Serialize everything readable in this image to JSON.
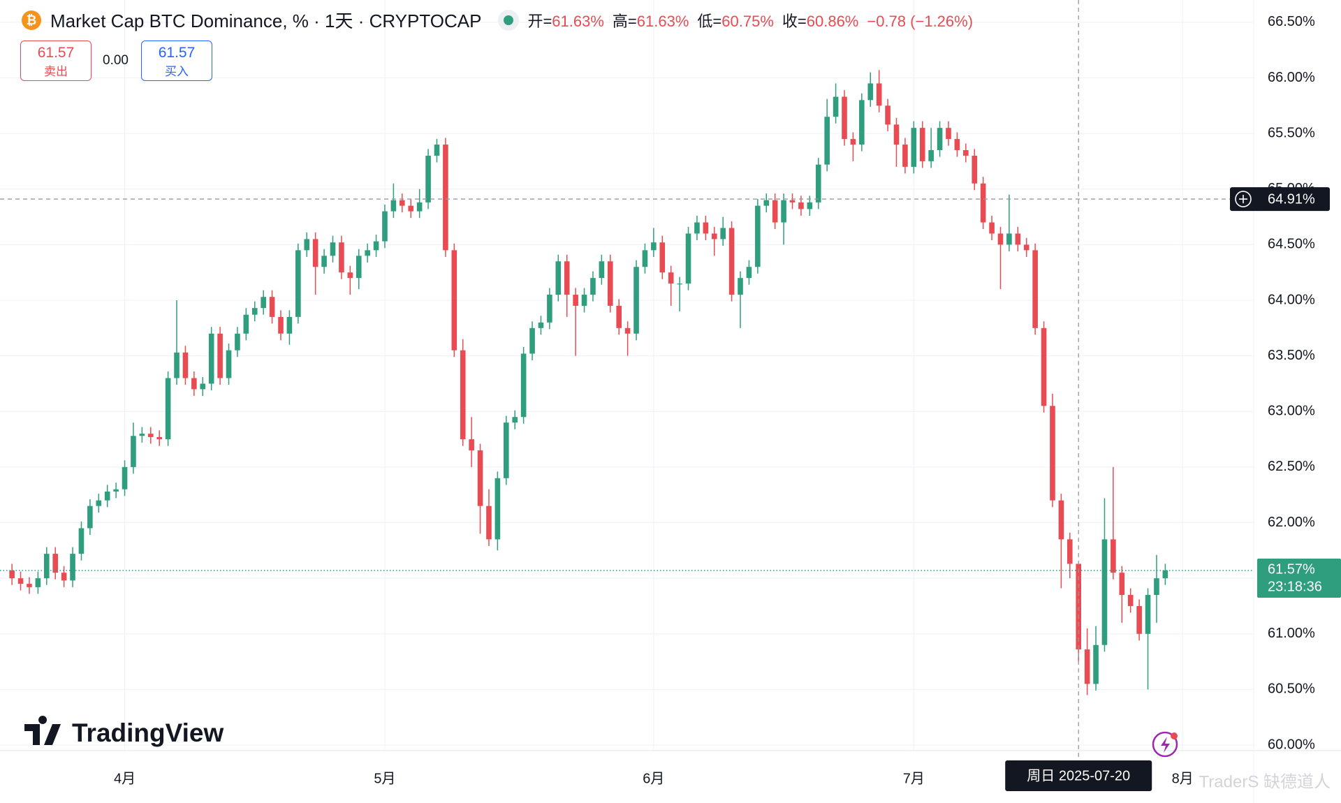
{
  "header": {
    "title": "Market Cap BTC Dominance, % · 1天 · CRYPTOCAP",
    "ohlc": [
      {
        "label": "开=",
        "value": "61.63%"
      },
      {
        "label": "高=",
        "value": "61.63%"
      },
      {
        "label": "低=",
        "value": "60.75%"
      },
      {
        "label": "收=",
        "value": "60.86%"
      }
    ],
    "change": "−0.78 (−1.26%)"
  },
  "trade": {
    "sell_price": "61.57",
    "sell_label": "卖出",
    "spread": "0.00",
    "buy_price": "61.57",
    "buy_label": "买入"
  },
  "chart_data": {
    "type": "candlestick",
    "up_color": "#2e9e7f",
    "down_color": "#e84c52",
    "grid": true,
    "open": [
      61.57,
      61.5,
      61.45,
      61.42,
      61.5,
      61.72,
      61.55,
      61.48,
      61.72,
      61.95,
      62.15,
      62.2,
      62.28,
      62.3,
      62.5,
      62.78,
      62.8,
      62.77,
      62.75,
      63.3,
      63.53,
      63.3,
      63.2,
      63.25,
      63.7,
      63.3,
      63.55,
      63.7,
      63.87,
      63.93,
      64.03,
      63.85,
      63.7,
      63.85,
      64.45,
      64.55,
      64.3,
      64.4,
      64.52,
      64.25,
      64.2,
      64.4,
      64.45,
      64.53,
      64.8,
      64.9,
      64.85,
      64.8,
      64.88,
      65.3,
      65.4,
      64.45,
      63.55,
      62.75,
      62.65,
      62.15,
      61.85,
      62.4,
      62.9,
      62.95,
      63.52,
      63.75,
      63.8,
      64.05,
      64.35,
      64.05,
      63.95,
      64.05,
      64.2,
      64.35,
      63.95,
      63.75,
      63.7,
      64.3,
      64.45,
      64.52,
      64.25,
      64.15,
      64.15,
      64.6,
      64.7,
      64.6,
      64.55,
      64.65,
      64.05,
      64.2,
      64.3,
      64.85,
      64.9,
      64.7,
      64.9,
      64.88,
      64.82,
      64.88,
      65.22,
      65.65,
      65.83,
      65.45,
      65.4,
      65.8,
      65.95,
      65.75,
      65.58,
      65.4,
      65.2,
      65.55,
      65.25,
      65.35,
      65.55,
      65.45,
      65.35,
      65.3,
      65.05,
      64.7,
      64.6,
      64.5,
      64.6,
      64.5,
      64.45,
      63.75,
      63.05,
      62.2,
      61.85,
      61.63,
      60.86,
      60.55,
      60.9,
      61.85,
      61.55,
      61.35,
      61.25,
      61.0,
      61.35,
      61.5
    ],
    "high": [
      61.63,
      61.56,
      61.51,
      61.56,
      61.78,
      61.78,
      61.61,
      61.78,
      62.01,
      62.21,
      62.26,
      62.34,
      62.36,
      62.56,
      62.9,
      62.86,
      62.86,
      62.83,
      63.36,
      64.0,
      63.59,
      63.36,
      63.31,
      63.76,
      63.76,
      63.61,
      63.76,
      63.93,
      63.99,
      64.09,
      64.09,
      63.91,
      63.91,
      64.51,
      64.61,
      64.61,
      64.46,
      64.58,
      64.58,
      64.31,
      64.46,
      64.51,
      64.59,
      64.86,
      65.05,
      64.96,
      64.91,
      65.0,
      65.36,
      65.45,
      65.46,
      64.51,
      63.65,
      62.95,
      62.71,
      62.3,
      62.46,
      62.96,
      63.01,
      63.58,
      63.81,
      63.86,
      64.11,
      64.41,
      64.41,
      64.11,
      64.11,
      64.26,
      64.41,
      64.41,
      64.01,
      63.81,
      64.36,
      64.51,
      64.65,
      64.58,
      64.31,
      64.21,
      64.66,
      64.76,
      64.76,
      64.66,
      64.75,
      64.71,
      64.26,
      64.36,
      64.91,
      64.96,
      64.96,
      64.96,
      64.96,
      64.94,
      64.94,
      65.28,
      65.81,
      65.95,
      65.89,
      65.51,
      65.86,
      66.05,
      66.07,
      65.81,
      65.64,
      65.46,
      65.61,
      65.61,
      65.55,
      65.61,
      65.61,
      65.51,
      65.41,
      65.36,
      65.11,
      64.76,
      64.66,
      64.95,
      64.66,
      64.56,
      64.51,
      63.81,
      63.16,
      62.26,
      61.91,
      61.63,
      61.05,
      61.07,
      62.22,
      62.5,
      61.61,
      61.41,
      61.31,
      61.41,
      61.71,
      61.63
    ],
    "low": [
      61.44,
      61.39,
      61.36,
      61.36,
      61.44,
      61.49,
      61.42,
      61.42,
      61.66,
      61.89,
      62.09,
      62.14,
      62.22,
      62.24,
      62.44,
      62.72,
      62.71,
      62.69,
      62.69,
      63.24,
      63.24,
      63.14,
      63.14,
      63.19,
      63.24,
      63.24,
      63.49,
      63.64,
      63.81,
      63.87,
      63.79,
      63.64,
      63.6,
      63.79,
      64.39,
      64.05,
      64.24,
      64.34,
      64.19,
      64.05,
      64.1,
      64.34,
      64.39,
      64.47,
      64.74,
      64.79,
      64.74,
      64.74,
      64.82,
      65.24,
      64.39,
      63.49,
      62.69,
      62.5,
      61.9,
      61.79,
      61.75,
      62.34,
      62.84,
      62.89,
      63.46,
      63.69,
      63.74,
      63.99,
      63.85,
      63.5,
      63.89,
      63.99,
      64.14,
      63.89,
      63.69,
      63.5,
      63.64,
      64.24,
      64.39,
      64.19,
      63.95,
      63.9,
      64.09,
      64.54,
      64.54,
      64.4,
      64.49,
      63.99,
      63.75,
      64.14,
      64.24,
      64.79,
      64.64,
      64.5,
      64.82,
      64.76,
      64.76,
      64.82,
      65.16,
      65.59,
      65.39,
      65.25,
      65.34,
      65.74,
      65.69,
      65.52,
      65.2,
      65.14,
      65.14,
      65.19,
      65.19,
      65.29,
      65.39,
      65.29,
      65.24,
      64.99,
      64.64,
      64.54,
      64.1,
      64.44,
      64.44,
      64.39,
      63.69,
      62.99,
      62.14,
      61.41,
      61.5,
      60.75,
      60.45,
      60.49,
      60.84,
      61.49,
      61.1,
      61.19,
      60.94,
      60.5,
      61.1,
      61.44
    ],
    "close": [
      61.5,
      61.45,
      61.42,
      61.5,
      61.72,
      61.55,
      61.48,
      61.72,
      61.95,
      62.15,
      62.2,
      62.28,
      62.3,
      62.5,
      62.78,
      62.8,
      62.77,
      62.75,
      63.3,
      63.53,
      63.3,
      63.2,
      63.25,
      63.7,
      63.3,
      63.55,
      63.7,
      63.87,
      63.93,
      64.03,
      63.85,
      63.7,
      63.85,
      64.45,
      64.55,
      64.3,
      64.4,
      64.52,
      64.25,
      64.2,
      64.4,
      64.45,
      64.53,
      64.8,
      64.9,
      64.85,
      64.8,
      64.88,
      65.3,
      65.4,
      64.45,
      63.55,
      62.75,
      62.65,
      62.15,
      61.85,
      62.4,
      62.9,
      62.95,
      63.52,
      63.75,
      63.8,
      64.05,
      64.35,
      64.05,
      63.95,
      64.05,
      64.2,
      64.35,
      63.95,
      63.75,
      63.7,
      64.3,
      64.45,
      64.52,
      64.25,
      64.15,
      64.15,
      64.6,
      64.7,
      64.6,
      64.55,
      64.65,
      64.05,
      64.2,
      64.3,
      64.85,
      64.9,
      64.7,
      64.9,
      64.88,
      64.82,
      64.88,
      65.22,
      65.65,
      65.83,
      65.45,
      65.4,
      65.8,
      65.95,
      65.75,
      65.58,
      65.4,
      65.2,
      65.55,
      65.25,
      65.35,
      65.55,
      65.45,
      65.35,
      65.3,
      65.05,
      64.7,
      64.6,
      64.5,
      64.6,
      64.5,
      64.45,
      63.75,
      63.05,
      62.2,
      61.85,
      61.63,
      60.86,
      60.55,
      60.9,
      61.85,
      61.55,
      61.35,
      61.25,
      61.0,
      61.35,
      61.5,
      61.57
    ],
    "ylim": [
      59.95,
      66.7
    ],
    "yticks": [
      {
        "value": 60,
        "label": "60.00%"
      },
      {
        "value": 60.5,
        "label": "60.50%"
      },
      {
        "value": 61,
        "label": "61.00%"
      },
      {
        "value": 61.5,
        "label": "61.50%"
      },
      {
        "value": 62,
        "label": "62.00%"
      },
      {
        "value": 62.5,
        "label": "62.50%"
      },
      {
        "value": 63,
        "label": "63.00%"
      },
      {
        "value": 63.5,
        "label": "63.50%"
      },
      {
        "value": 64,
        "label": "64.00%"
      },
      {
        "value": 64.5,
        "label": "64.50%"
      },
      {
        "value": 65,
        "label": "65.00%"
      },
      {
        "value": 65.5,
        "label": "65.50%"
      },
      {
        "value": 66,
        "label": "66.00%"
      },
      {
        "value": 66.5,
        "label": "66.50%"
      }
    ],
    "xlim": [
      -1.38,
      143.2
    ],
    "xticks": [
      {
        "value": 13,
        "label": "4月"
      },
      {
        "value": 43,
        "label": "5月"
      },
      {
        "value": 74,
        "label": "6月"
      },
      {
        "value": 104,
        "label": "7月"
      },
      {
        "value": 135,
        "label": "8月"
      }
    ],
    "crosshair": {
      "value": 64.91,
      "label": "64.91%",
      "x": 123,
      "date": "周日 2025-07-20"
    },
    "last_price": {
      "value": 61.57,
      "label": "61.57%",
      "countdown": "23:18:36"
    }
  },
  "watermark": "TradingView",
  "credit": "TraderS 缺德道人"
}
